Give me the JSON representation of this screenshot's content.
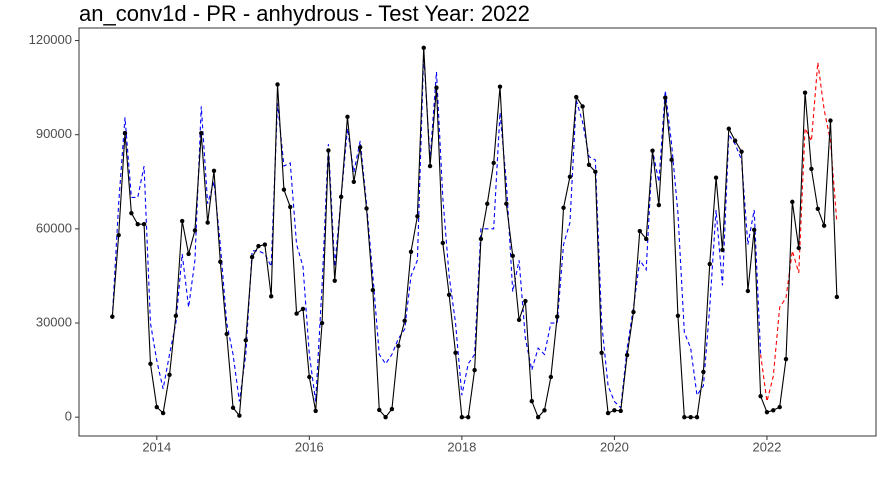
{
  "chart_data": {
    "type": "line",
    "title": "an_conv1d - PR - anhydrous - Test Year: 2022",
    "x": [
      2013.417,
      2013.5,
      2013.583,
      2013.667,
      2013.75,
      2013.833,
      2013.917,
      2014.0,
      2014.083,
      2014.167,
      2014.25,
      2014.333,
      2014.417,
      2014.5,
      2014.583,
      2014.667,
      2014.75,
      2014.833,
      2014.917,
      2015.0,
      2015.083,
      2015.167,
      2015.25,
      2015.333,
      2015.417,
      2015.5,
      2015.583,
      2015.667,
      2015.75,
      2015.833,
      2015.917,
      2016.0,
      2016.083,
      2016.167,
      2016.25,
      2016.333,
      2016.417,
      2016.5,
      2016.583,
      2016.667,
      2016.75,
      2016.833,
      2016.917,
      2017.0,
      2017.083,
      2017.167,
      2017.25,
      2017.333,
      2017.417,
      2017.5,
      2017.583,
      2017.667,
      2017.75,
      2017.833,
      2017.917,
      2018.0,
      2018.083,
      2018.167,
      2018.25,
      2018.333,
      2018.417,
      2018.5,
      2018.583,
      2018.667,
      2018.75,
      2018.833,
      2018.917,
      2019.0,
      2019.083,
      2019.167,
      2019.25,
      2019.333,
      2019.417,
      2019.5,
      2019.583,
      2019.667,
      2019.75,
      2019.833,
      2019.917,
      2020.0,
      2020.083,
      2020.167,
      2020.25,
      2020.333,
      2020.417,
      2020.5,
      2020.583,
      2020.667,
      2020.75,
      2020.833,
      2020.917,
      2021.0,
      2021.083,
      2021.167,
      2021.25,
      2021.333,
      2021.417,
      2021.5,
      2021.583,
      2021.667,
      2021.75,
      2021.833,
      2021.917,
      2022.0,
      2022.083,
      2022.167,
      2022.25,
      2022.333,
      2022.417,
      2022.5,
      2022.583,
      2022.667,
      2022.75,
      2022.833,
      2022.917
    ],
    "series": [
      {
        "color": "#0000ff",
        "dash": true,
        "marker": false,
        "values": [
          32000,
          68000,
          95500,
          70000,
          70000,
          80000,
          30000,
          18000,
          9000,
          20000,
          30000,
          52000,
          35000,
          50000,
          99000,
          68000,
          75000,
          55000,
          30000,
          20000,
          5000,
          20000,
          53000,
          53000,
          52000,
          48000,
          100000,
          80000,
          81000,
          55000,
          48000,
          20000,
          5000,
          42000,
          87000,
          48000,
          70000,
          92000,
          78000,
          88000,
          68000,
          45000,
          20000,
          17000,
          20000,
          25000,
          28000,
          45000,
          50000,
          116000,
          82000,
          110000,
          70000,
          45000,
          30000,
          7000,
          17000,
          20000,
          60000,
          60000,
          60000,
          97000,
          75000,
          40000,
          50000,
          25000,
          15000,
          22000,
          20000,
          30000,
          30000,
          55000,
          62000,
          101000,
          94000,
          83000,
          82000,
          30000,
          10000,
          5000,
          3000,
          22000,
          35000,
          50000,
          47000,
          85000,
          75000,
          104000,
          87000,
          65000,
          27000,
          22000,
          7000,
          10000,
          35000,
          66000,
          42000,
          90000,
          87000,
          82000,
          55000,
          66000,
          20000,
          null,
          null,
          null,
          null,
          null,
          null,
          null,
          null,
          null,
          null,
          null,
          null
        ]
      },
      {
        "color": "#ff0000",
        "dash": true,
        "marker": false,
        "values": [
          null,
          null,
          null,
          null,
          null,
          null,
          null,
          null,
          null,
          null,
          null,
          null,
          null,
          null,
          null,
          null,
          null,
          null,
          null,
          null,
          null,
          null,
          null,
          null,
          null,
          null,
          null,
          null,
          null,
          null,
          null,
          null,
          null,
          null,
          null,
          null,
          null,
          null,
          null,
          null,
          null,
          null,
          null,
          null,
          null,
          null,
          null,
          null,
          null,
          null,
          null,
          null,
          null,
          null,
          null,
          null,
          null,
          null,
          null,
          null,
          null,
          null,
          null,
          null,
          null,
          null,
          null,
          null,
          null,
          null,
          null,
          null,
          null,
          null,
          null,
          null,
          null,
          null,
          null,
          null,
          null,
          null,
          null,
          null,
          null,
          null,
          null,
          null,
          null,
          null,
          null,
          null,
          null,
          null,
          null,
          null,
          null,
          null,
          null,
          null,
          null,
          null,
          20000,
          5000,
          13000,
          35000,
          38000,
          53000,
          46000,
          92000,
          88000,
          113000,
          98000,
          88000,
          62000
        ]
      },
      {
        "color": "#000000",
        "dash": false,
        "marker": true,
        "values": [
          32000,
          58000,
          90500,
          65000,
          61500,
          61500,
          17000,
          3200,
          1300,
          13500,
          32300,
          62500,
          52000,
          59500,
          90500,
          62000,
          78500,
          49500,
          26500,
          3000,
          500,
          24500,
          51000,
          54500,
          55000,
          38500,
          106000,
          72500,
          67000,
          33000,
          34500,
          12800,
          2000,
          30000,
          85000,
          43500,
          70200,
          95700,
          75000,
          86000,
          66500,
          40500,
          2300,
          0,
          2600,
          22700,
          30700,
          52700,
          64000,
          117700,
          80000,
          105000,
          55500,
          39000,
          20500,
          0,
          0,
          15000,
          56800,
          68000,
          81000,
          105300,
          68000,
          51400,
          31000,
          37000,
          5100,
          0,
          2200,
          12800,
          32000,
          66700,
          76600,
          102000,
          99000,
          80400,
          78200,
          20500,
          1300,
          2200,
          2000,
          19800,
          33500,
          59300,
          56800,
          84900,
          67600,
          101800,
          82000,
          32300,
          0,
          0,
          0,
          14400,
          48800,
          76300,
          53300,
          91900,
          88100,
          84600,
          40200,
          59700,
          6700,
          1600,
          2200,
          3200,
          18500,
          68600,
          53900,
          103400,
          79100,
          66400,
          61000,
          94500,
          38300
        ]
      }
    ],
    "xlim": [
      2012.98,
      2023.43
    ],
    "xticks": [
      2014,
      2016,
      2018,
      2020,
      2022
    ],
    "ylim": [
      -6000,
      124000
    ],
    "yticks": [
      0,
      30000,
      60000,
      90000,
      120000
    ]
  }
}
